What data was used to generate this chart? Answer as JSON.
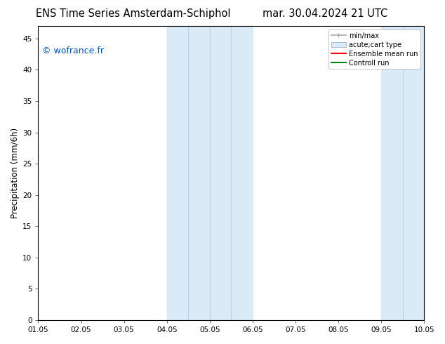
{
  "title_left": "ENS Time Series Amsterdam-Schiphol",
  "title_right": "mar. 30.04.2024 21 UTC",
  "ylabel": "Precipitation (mm/6h)",
  "xlim": [
    0,
    9
  ],
  "ylim": [
    0,
    47
  ],
  "yticks": [
    0,
    5,
    10,
    15,
    20,
    25,
    30,
    35,
    40,
    45
  ],
  "xtick_positions": [
    0,
    1,
    2,
    3,
    4,
    5,
    6,
    7,
    8,
    9
  ],
  "xtick_labels": [
    "01.05",
    "02.05",
    "03.05",
    "04.05",
    "05.05",
    "06.05",
    "07.05",
    "08.05",
    "09.05",
    "10.05"
  ],
  "shaded_regions": [
    {
      "xmin": 3.0,
      "xmax": 5.0,
      "color": "#daeaf7"
    },
    {
      "xmin": 8.0,
      "xmax": 9.0,
      "color": "#daeaf7"
    }
  ],
  "inner_vlines": [
    3.5,
    4.0,
    4.5,
    8.5
  ],
  "watermark_text": "© wofrance.fr",
  "watermark_color": "#0055cc",
  "legend_labels": [
    "min/max",
    "acute;cart type",
    "Ensemble mean run",
    "Controll run"
  ],
  "bg_color": "#ffffff",
  "title_fontsize": 10.5,
  "tick_fontsize": 7.5,
  "ylabel_fontsize": 8.5,
  "watermark_fontsize": 9
}
